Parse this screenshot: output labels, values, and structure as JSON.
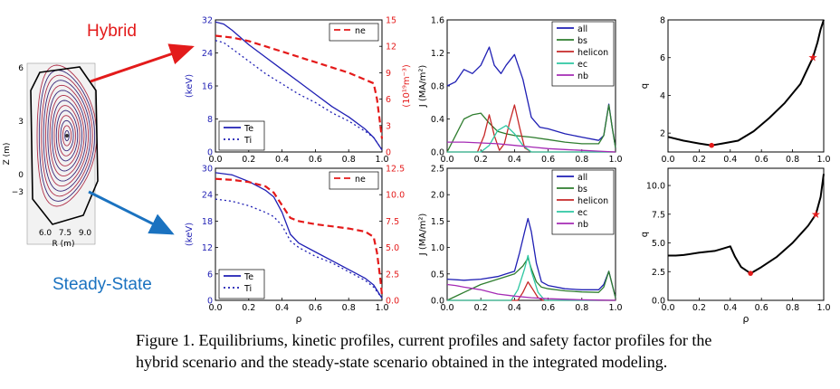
{
  "labels": {
    "hybrid": "Hybrid",
    "steady": "Steady-State"
  },
  "colors": {
    "hybrid": "#e31b1b",
    "steady": "#1a72c0",
    "blue": "#1f1fb4",
    "red": "#e41a1a",
    "green": "#2e7d2e",
    "darkred": "#c62828",
    "cyan": "#2ec7a2",
    "purple": "#a52bb5"
  },
  "caption": {
    "line1": "Figure 1. Equilibriums, kinetic profiles, current profiles and safety factor profiles for the",
    "line2": "hybrid scenario and the steady-state scenario obtained in the integrated modeling."
  },
  "equilibrium": {
    "zlabel": "Z (m)",
    "rlabel": "R (m)",
    "z_ticks": [
      "6",
      "3",
      "0",
      "−3"
    ],
    "r_ticks": [
      "6.0",
      "7.5",
      "9.0"
    ]
  },
  "chart_data": [
    {
      "id": "kin_hybrid",
      "type": "line",
      "ylabel_left": "(keV)",
      "ylabel_right": "(10¹⁹m⁻³)",
      "xlim": [
        0,
        1
      ],
      "ylim_left": [
        0,
        32
      ],
      "ylim_right": [
        0,
        15
      ],
      "x_ticks": [
        "0.0",
        "0.2",
        "0.4",
        "0.6",
        "0.8",
        "1.0"
      ],
      "yl_ticks": [
        0,
        8,
        16,
        24,
        32
      ],
      "yr_ticks": [
        0,
        3,
        6,
        9,
        12,
        15
      ],
      "legend_left": {
        "loc": "bottom-left",
        "entries": [
          "Te",
          "Ti"
        ]
      },
      "legend_right": {
        "loc": "top-right",
        "entries": [
          "ne"
        ]
      },
      "series": [
        {
          "name": "Te",
          "axis": "left",
          "style": "solid",
          "color": "#1f1fb4",
          "x": [
            0,
            0.05,
            0.1,
            0.2,
            0.3,
            0.4,
            0.5,
            0.6,
            0.7,
            0.8,
            0.9,
            0.95,
            1.0
          ],
          "y": [
            31.5,
            31,
            29.5,
            26,
            23,
            20,
            17,
            14,
            11,
            8.5,
            5.5,
            3.5,
            0.5
          ]
        },
        {
          "name": "Ti",
          "axis": "left",
          "style": "dotted",
          "color": "#1f1fb4",
          "x": [
            0,
            0.05,
            0.1,
            0.2,
            0.3,
            0.4,
            0.5,
            0.6,
            0.7,
            0.8,
            0.9,
            0.95,
            1.0
          ],
          "y": [
            27,
            26.5,
            25,
            22,
            19,
            16.5,
            14,
            12,
            9.5,
            7.5,
            5,
            3.5,
            0.5
          ]
        },
        {
          "name": "ne",
          "axis": "right",
          "style": "dashed",
          "color": "#e41a1a",
          "x": [
            0,
            0.1,
            0.2,
            0.3,
            0.4,
            0.5,
            0.6,
            0.7,
            0.8,
            0.9,
            0.95,
            0.97,
            0.99,
            1.0
          ],
          "y": [
            13.2,
            13,
            12.6,
            12,
            11.4,
            10.8,
            10.2,
            9.6,
            9,
            8.2,
            7.8,
            6,
            3,
            1.5
          ]
        }
      ]
    },
    {
      "id": "kin_steady",
      "type": "line",
      "xlabel": "ρ",
      "ylabel_left": "(keV)",
      "ylabel_right": "",
      "xlim": [
        0,
        1
      ],
      "ylim_left": [
        0,
        30
      ],
      "ylim_right": [
        0,
        12.5
      ],
      "x_ticks": [
        "0.0",
        "0.2",
        "0.4",
        "0.6",
        "0.8",
        "1.0"
      ],
      "yl_ticks": [
        0,
        6,
        12,
        18,
        24,
        30
      ],
      "yr_ticks": [
        "0.0",
        "2.5",
        "5.0",
        "7.5",
        "10.0",
        "12.5"
      ],
      "legend_left": {
        "loc": "bottom-left",
        "entries": [
          "Te",
          "Ti"
        ]
      },
      "legend_right": {
        "loc": "top-right",
        "entries": [
          "ne"
        ]
      },
      "series": [
        {
          "name": "Te",
          "axis": "left",
          "style": "solid",
          "color": "#1f1fb4",
          "x": [
            0,
            0.1,
            0.2,
            0.3,
            0.35,
            0.4,
            0.45,
            0.5,
            0.6,
            0.7,
            0.8,
            0.9,
            0.95,
            1.0
          ],
          "y": [
            29,
            28.5,
            27,
            25,
            23.5,
            20,
            15,
            13,
            11,
            9,
            7,
            5,
            3.5,
            0.5
          ]
        },
        {
          "name": "Ti",
          "axis": "left",
          "style": "dotted",
          "color": "#1f1fb4",
          "x": [
            0,
            0.1,
            0.2,
            0.3,
            0.35,
            0.4,
            0.45,
            0.5,
            0.6,
            0.7,
            0.8,
            0.9,
            0.95,
            1.0
          ],
          "y": [
            23,
            22.5,
            21.5,
            20,
            19,
            17,
            13.5,
            12,
            10,
            8.5,
            6.5,
            4.5,
            3,
            0.5
          ]
        },
        {
          "name": "ne",
          "axis": "right",
          "style": "dashed",
          "color": "#e41a1a",
          "x": [
            0,
            0.1,
            0.2,
            0.3,
            0.35,
            0.4,
            0.45,
            0.5,
            0.6,
            0.7,
            0.8,
            0.9,
            0.95,
            0.97,
            0.99,
            1.0
          ],
          "y": [
            11.5,
            11.4,
            11.2,
            10.8,
            10.2,
            9.0,
            7.8,
            7.5,
            7.2,
            7.0,
            6.8,
            6.5,
            6.0,
            4.5,
            2.0,
            0.5
          ]
        }
      ]
    },
    {
      "id": "cur_hybrid",
      "type": "line",
      "ylabel": "J (MA/m²)",
      "xlim": [
        0,
        1
      ],
      "ylim": [
        0,
        1.6
      ],
      "x_ticks": [
        "0.0",
        "0.2",
        "0.4",
        "0.6",
        "0.8",
        "1.0"
      ],
      "y_ticks": [
        "0.0",
        "0.4",
        "0.8",
        "1.2",
        "1.6"
      ],
      "legend": {
        "loc": "top-right",
        "entries": [
          "all",
          "bs",
          "helicon",
          "ec",
          "nb"
        ]
      },
      "series": [
        {
          "name": "all",
          "color": "#1f1fb4",
          "x": [
            0,
            0.05,
            0.1,
            0.15,
            0.2,
            0.25,
            0.28,
            0.32,
            0.35,
            0.4,
            0.45,
            0.5,
            0.55,
            0.6,
            0.7,
            0.8,
            0.9,
            0.93,
            0.96,
            0.98,
            1.0
          ],
          "y": [
            0.8,
            0.85,
            1.0,
            0.95,
            1.05,
            1.27,
            1.05,
            0.95,
            1.05,
            1.18,
            0.88,
            0.42,
            0.3,
            0.28,
            0.22,
            0.18,
            0.14,
            0.2,
            0.58,
            0.3,
            0.05
          ]
        },
        {
          "name": "bs",
          "color": "#2e7d2e",
          "x": [
            0,
            0.05,
            0.1,
            0.15,
            0.2,
            0.25,
            0.3,
            0.35,
            0.4,
            0.5,
            0.6,
            0.7,
            0.8,
            0.9,
            0.93,
            0.96,
            0.98,
            1.0
          ],
          "y": [
            0.0,
            0.2,
            0.4,
            0.45,
            0.47,
            0.35,
            0.25,
            0.22,
            0.2,
            0.18,
            0.15,
            0.12,
            0.1,
            0.1,
            0.2,
            0.57,
            0.3,
            0.05
          ]
        },
        {
          "name": "helicon",
          "color": "#c62828",
          "x": [
            0,
            0.18,
            0.22,
            0.25,
            0.28,
            0.31,
            0.34,
            0.37,
            0.4,
            0.43,
            0.46,
            0.5,
            1.0
          ],
          "y": [
            0,
            0,
            0.2,
            0.45,
            0.2,
            0.02,
            0.1,
            0.35,
            0.57,
            0.3,
            0.05,
            0,
            0
          ]
        },
        {
          "name": "ec",
          "color": "#2ec7a2",
          "x": [
            0,
            0.2,
            0.25,
            0.3,
            0.35,
            0.4,
            0.45,
            0.5,
            1.0
          ],
          "y": [
            0,
            0,
            0.08,
            0.26,
            0.32,
            0.22,
            0.08,
            0,
            0
          ]
        },
        {
          "name": "nb",
          "color": "#a52bb5",
          "x": [
            0,
            0.1,
            0.2,
            0.3,
            0.4,
            0.5,
            0.6,
            0.7,
            0.8,
            0.9,
            1.0
          ],
          "y": [
            0.12,
            0.12,
            0.11,
            0.1,
            0.08,
            0.06,
            0.04,
            0.03,
            0.02,
            0.01,
            0
          ]
        }
      ]
    },
    {
      "id": "cur_steady",
      "type": "line",
      "ylabel": "J (MA/m²)",
      "xlim": [
        0,
        1
      ],
      "ylim": [
        0,
        2.5
      ],
      "x_ticks": [
        "0.0",
        "0.2",
        "0.4",
        "0.6",
        "0.8",
        "1.0"
      ],
      "y_ticks": [
        "0.0",
        "0.5",
        "1.0",
        "1.5",
        "2.0",
        "2.5"
      ],
      "legend": {
        "loc": "top-right",
        "entries": [
          "all",
          "bs",
          "helicon",
          "ec",
          "nb"
        ]
      },
      "series": [
        {
          "name": "all",
          "color": "#1f1fb4",
          "x": [
            0,
            0.1,
            0.2,
            0.3,
            0.35,
            0.4,
            0.43,
            0.46,
            0.48,
            0.5,
            0.53,
            0.56,
            0.6,
            0.7,
            0.8,
            0.9,
            0.93,
            0.96,
            0.98,
            1.0
          ],
          "y": [
            0.4,
            0.38,
            0.4,
            0.45,
            0.5,
            0.55,
            0.9,
            1.3,
            1.55,
            1.3,
            0.7,
            0.35,
            0.28,
            0.22,
            0.2,
            0.2,
            0.3,
            0.55,
            0.3,
            0.05
          ]
        },
        {
          "name": "bs",
          "color": "#2e7d2e",
          "x": [
            0,
            0.1,
            0.2,
            0.3,
            0.35,
            0.4,
            0.45,
            0.48,
            0.5,
            0.53,
            0.56,
            0.6,
            0.7,
            0.8,
            0.9,
            0.93,
            0.96,
            0.98,
            1.0
          ],
          "y": [
            0.0,
            0.15,
            0.3,
            0.4,
            0.45,
            0.5,
            0.65,
            0.8,
            0.6,
            0.35,
            0.25,
            0.22,
            0.18,
            0.16,
            0.15,
            0.25,
            0.55,
            0.3,
            0.05
          ]
        },
        {
          "name": "helicon",
          "color": "#c62828",
          "x": [
            0,
            0.42,
            0.45,
            0.48,
            0.51,
            0.54,
            0.57,
            1.0
          ],
          "y": [
            0,
            0,
            0.15,
            0.35,
            0.2,
            0.05,
            0,
            0
          ]
        },
        {
          "name": "ec",
          "color": "#2ec7a2",
          "x": [
            0,
            0.38,
            0.42,
            0.46,
            0.48,
            0.5,
            0.54,
            0.58,
            1.0
          ],
          "y": [
            0,
            0,
            0.2,
            0.6,
            0.85,
            0.55,
            0.15,
            0,
            0
          ]
        },
        {
          "name": "nb",
          "color": "#a52bb5",
          "x": [
            0,
            0.05,
            0.1,
            0.2,
            0.3,
            0.4,
            0.5,
            0.6,
            0.7,
            0.8,
            0.9,
            1.0
          ],
          "y": [
            0.3,
            0.28,
            0.25,
            0.2,
            0.12,
            0.08,
            0.05,
            0.03,
            0.02,
            0.01,
            0.005,
            0
          ]
        }
      ]
    },
    {
      "id": "q_hybrid",
      "type": "line",
      "ylabel": "q",
      "xlim": [
        0,
        1
      ],
      "ylim": [
        1,
        8
      ],
      "x_ticks": [
        "0.0",
        "0.2",
        "0.4",
        "0.6",
        "0.8",
        "1.0"
      ],
      "y_ticks": [
        "2",
        "4",
        "6",
        "8"
      ],
      "series": [
        {
          "name": "q",
          "color": "#000000",
          "x": [
            0,
            0.1,
            0.2,
            0.28,
            0.35,
            0.45,
            0.55,
            0.65,
            0.75,
            0.85,
            0.93,
            0.96,
            0.98,
            1.0
          ],
          "y": [
            1.8,
            1.6,
            1.45,
            1.35,
            1.45,
            1.6,
            2.1,
            2.8,
            3.6,
            4.6,
            6.0,
            6.8,
            7.5,
            8.0
          ]
        }
      ],
      "markers": [
        {
          "x": 0.28,
          "y": 1.35
        },
        {
          "x": 0.93,
          "y": 6.0
        }
      ]
    },
    {
      "id": "q_steady",
      "type": "line",
      "xlabel": "ρ",
      "ylabel": "q",
      "xlim": [
        0,
        1
      ],
      "ylim": [
        0,
        11.5
      ],
      "x_ticks": [
        "0.0",
        "0.2",
        "0.4",
        "0.6",
        "0.8",
        "1.0"
      ],
      "y_ticks": [
        "0.0",
        "2.5",
        "5.0",
        "7.5",
        "10.0"
      ],
      "series": [
        {
          "name": "q",
          "color": "#000000",
          "x": [
            0,
            0.05,
            0.1,
            0.2,
            0.3,
            0.35,
            0.4,
            0.43,
            0.47,
            0.53,
            0.6,
            0.7,
            0.8,
            0.9,
            0.95,
            0.98,
            1.0
          ],
          "y": [
            3.9,
            3.9,
            3.95,
            4.15,
            4.3,
            4.5,
            4.7,
            3.8,
            2.9,
            2.35,
            2.9,
            3.8,
            5.0,
            6.5,
            7.5,
            9.0,
            11.0
          ]
        }
      ],
      "markers": [
        {
          "x": 0.53,
          "y": 2.35
        },
        {
          "x": 0.95,
          "y": 7.5
        }
      ]
    }
  ]
}
